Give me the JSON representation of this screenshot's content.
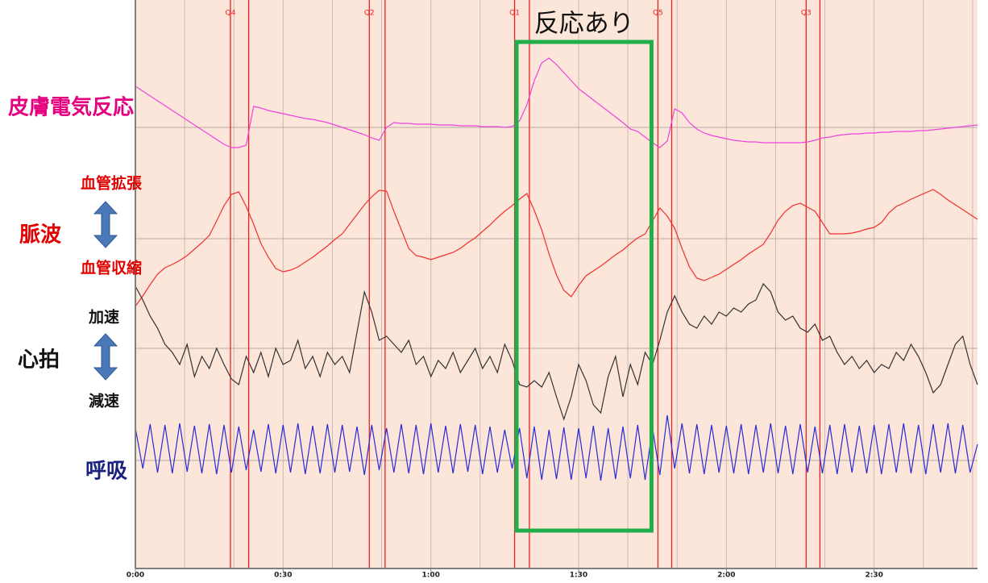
{
  "chart_data": {
    "type": "line",
    "title": "反応あり",
    "xlim": [
      0,
      171
    ],
    "xticks": [
      {
        "value": 0,
        "label": "0:00"
      },
      {
        "value": 30,
        "label": "0:30"
      },
      {
        "value": 60,
        "label": "1:00"
      },
      {
        "value": 90,
        "label": "1:30"
      },
      {
        "value": 120,
        "label": "2:00"
      },
      {
        "value": 150,
        "label": "2:30"
      }
    ],
    "xminorticks": [
      10,
      20,
      30,
      40,
      50,
      60,
      70,
      80,
      90,
      100,
      110,
      120,
      130,
      140,
      150,
      160,
      170
    ],
    "grid": true,
    "background": "#fce5d9",
    "markers": [
      {
        "label": "Q4",
        "start": 19.3,
        "end": 23.0
      },
      {
        "label": "Q2",
        "start": 47.5,
        "end": 50.7
      },
      {
        "label": "Q1",
        "start": 77.0,
        "end": 80.0
      },
      {
        "label": "Q5",
        "start": 106.1,
        "end": 108.9
      },
      {
        "label": "Q3",
        "start": 136.2,
        "end": 139.0
      }
    ],
    "marker_color": "#ee2020",
    "response_window": [
      77.4,
      104.8
    ],
    "response_color": "#1fae4a",
    "annotations": [
      "血管拡張",
      "血管収縮",
      "加速",
      "減速"
    ],
    "x": [
      0,
      1.5,
      3,
      4.5,
      6,
      7.5,
      9,
      10.5,
      12,
      13.5,
      15,
      16.5,
      18,
      19.5,
      21,
      22.5,
      24,
      25.5,
      27,
      28.5,
      30,
      31.5,
      33,
      34.5,
      36,
      37.5,
      39,
      40.5,
      42,
      43.5,
      45,
      46.5,
      48,
      49.5,
      51,
      52.5,
      54,
      55.5,
      57,
      58.5,
      60,
      61.5,
      63,
      64.5,
      66,
      67.5,
      69,
      70.5,
      72,
      73.5,
      75,
      76.5,
      78,
      79.5,
      81,
      82.5,
      84,
      85.5,
      87,
      88.5,
      90,
      91.5,
      93,
      94.5,
      96,
      97.5,
      99,
      100.5,
      102,
      103.5,
      105,
      106.5,
      108,
      109.5,
      111,
      112.5,
      114,
      115.5,
      117,
      118.5,
      120,
      121.5,
      123,
      124.5,
      126,
      127.5,
      129,
      130.5,
      132,
      133.5,
      135,
      136.5,
      138,
      139.5,
      141,
      142.5,
      144,
      145.5,
      147,
      148.5,
      150,
      151.5,
      153,
      154.5,
      156,
      157.5,
      159,
      160.5,
      162,
      163.5,
      165,
      166.5,
      168,
      169.5,
      171
    ],
    "series": [
      {
        "name": "皮膚電気反応",
        "color": "#ee44dd",
        "ylim": [
          -60,
          90
        ],
        "values": [
          51,
          45,
          39,
          33,
          27,
          21,
          15,
          9,
          3,
          -3,
          -9,
          -15,
          -21,
          -25,
          -25,
          -22,
          26,
          24,
          21,
          19,
          17,
          15,
          13,
          11,
          10,
          8,
          6,
          3,
          0,
          -3,
          -6,
          -9,
          -13,
          -16,
          0,
          6,
          5,
          5,
          4,
          4,
          4,
          3,
          3,
          3,
          2,
          2,
          2,
          1,
          1,
          1,
          0,
          1,
          8,
          28,
          58,
          80,
          86,
          78,
          68,
          58,
          48,
          41,
          34,
          27,
          20,
          13,
          6,
          -2,
          -5,
          -12,
          -19,
          -25,
          -17,
          23,
          18,
          6,
          -2,
          -7,
          -10,
          -12,
          -14,
          -16,
          -17,
          -18,
          -18,
          -19,
          -19,
          -19,
          -19,
          -19,
          -19,
          -18,
          -16,
          -13,
          -12,
          -10,
          -9,
          -8,
          -8,
          -7,
          -7,
          -6,
          -6,
          -5,
          -5,
          -5,
          -4,
          -4,
          -3,
          -2,
          -1,
          0,
          1,
          2,
          3
        ]
      },
      {
        "name": "脈波",
        "color": "#f03030",
        "ylim": [
          -100,
          80
        ],
        "values": [
          -84,
          -71,
          -57,
          -44,
          -36,
          -32,
          -27,
          -21,
          -13,
          -5,
          4,
          22,
          41,
          55,
          58,
          40,
          18,
          -6,
          -23,
          -37,
          -41,
          -39,
          -35,
          -29,
          -23,
          -16,
          -9,
          -1,
          6,
          18,
          30,
          42,
          52,
          60,
          59,
          34,
          11,
          -12,
          -21,
          -23,
          -26,
          -23,
          -20,
          -17,
          -12,
          -5,
          1,
          9,
          17,
          26,
          34,
          41,
          49,
          56,
          35,
          11,
          -19,
          -45,
          -64,
          -72,
          -58,
          -46,
          -40,
          -34,
          -27,
          -20,
          -14,
          -6,
          1,
          6,
          22,
          38,
          28,
          13,
          -12,
          -35,
          -49,
          -52,
          -48,
          -44,
          -38,
          -32,
          -26,
          -19,
          -13,
          -7,
          7,
          23,
          34,
          41,
          44,
          39,
          34,
          20,
          6,
          6,
          6,
          7,
          9,
          12,
          14,
          20,
          32,
          40,
          44,
          49,
          53,
          57,
          61,
          55,
          48,
          42,
          36,
          30,
          24
        ]
      },
      {
        "name": "心拍",
        "color": "#333333",
        "ylim": [
          -90,
          90
        ],
        "values": [
          77,
          60,
          40,
          25,
          5,
          -5,
          -20,
          5,
          -35,
          -10,
          -25,
          0,
          -20,
          -38,
          -45,
          -10,
          -30,
          -5,
          -35,
          0,
          -20,
          -15,
          10,
          -25,
          -10,
          -35,
          -5,
          -20,
          -10,
          -30,
          20,
          70,
          45,
          10,
          15,
          5,
          -5,
          10,
          -20,
          -10,
          -35,
          -15,
          -25,
          -5,
          -30,
          -15,
          0,
          -25,
          -10,
          -30,
          5,
          -15,
          -45,
          -48,
          -40,
          -48,
          -30,
          -60,
          -88,
          -60,
          -20,
          -40,
          -70,
          -80,
          -35,
          -10,
          -60,
          -20,
          -45,
          -5,
          -20,
          10,
          45,
          65,
          45,
          30,
          25,
          40,
          30,
          45,
          40,
          50,
          45,
          55,
          60,
          80,
          70,
          45,
          35,
          40,
          25,
          20,
          30,
          10,
          15,
          -5,
          -20,
          -10,
          -25,
          -15,
          -30,
          -20,
          -25,
          -5,
          -15,
          5,
          -10,
          -30,
          -55,
          -45,
          -20,
          5,
          15,
          -20,
          -45
        ]
      },
      {
        "name": "呼吸",
        "color": "#2b2bd9",
        "ylim": [
          -60,
          60
        ],
        "values": [
          40,
          -10,
          45,
          -15,
          44,
          -16,
          46,
          -14,
          43,
          -16,
          45,
          -17,
          44,
          -15,
          42,
          -12,
          38,
          -14,
          45,
          -16,
          44,
          -15,
          46,
          -17,
          43,
          -16,
          45,
          -15,
          44,
          -14,
          42,
          -18,
          44,
          -12,
          40,
          -15,
          45,
          -16,
          44,
          -17,
          46,
          -15,
          43,
          -16,
          45,
          -14,
          44,
          -17,
          42,
          -15,
          38,
          -10,
          40,
          -22,
          42,
          -24,
          38,
          -23,
          41,
          -24,
          40,
          -22,
          43,
          -25,
          40,
          -23,
          42,
          -22,
          44,
          -24,
          40,
          -18,
          56,
          -10,
          46,
          -16,
          45,
          -17,
          44,
          -15,
          43,
          -16,
          45,
          -17,
          44,
          -15,
          46,
          -16,
          43,
          -17,
          45,
          -15,
          42,
          -16,
          44,
          -17,
          45,
          -15,
          43,
          -16,
          44,
          -17,
          45,
          -15,
          46,
          -16,
          44,
          -17,
          45,
          -15,
          46,
          -16,
          44,
          -15,
          20
        ]
      }
    ]
  }
}
